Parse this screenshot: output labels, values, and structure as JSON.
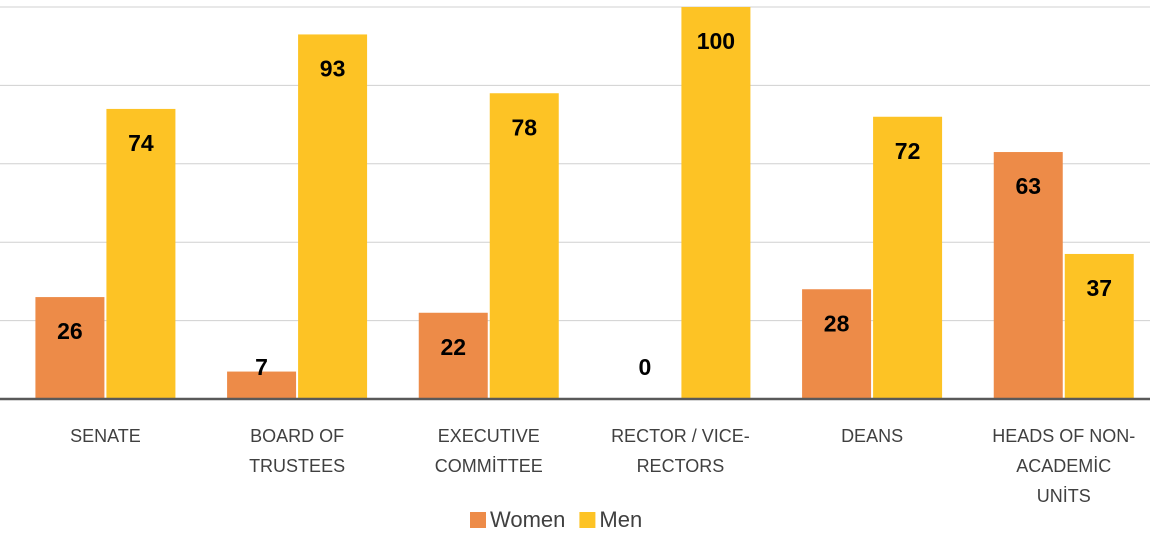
{
  "chart_data": {
    "type": "bar",
    "categories": [
      "SENATE",
      "BOARD OF\nTRUSTEES",
      "EXECUTIVE\nCOMMİTTEE",
      "RECTOR / VICE-\nRECTORS",
      "DEANS",
      "HEADS OF NON-\nACADEMİC\nUNİTS"
    ],
    "series": [
      {
        "name": "Women",
        "color": "#ED8B48",
        "values": [
          26,
          7,
          22,
          0,
          28,
          63
        ]
      },
      {
        "name": "Men",
        "color": "#FDC325",
        "values": [
          74,
          93,
          78,
          100,
          72,
          37
        ]
      }
    ],
    "ylim": [
      0,
      100
    ],
    "yticks": [
      0,
      20,
      40,
      60,
      80,
      100
    ],
    "grid": true,
    "legend": "bottom"
  }
}
